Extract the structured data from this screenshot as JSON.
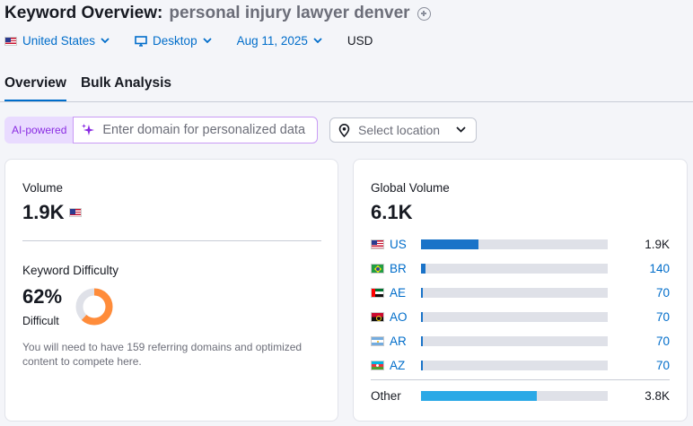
{
  "header": {
    "title": "Keyword Overview:",
    "keyword": "personal injury lawyer denver",
    "filters": {
      "country": "United States",
      "device": "Desktop",
      "date": "Aug 11, 2025",
      "currency": "USD"
    },
    "tabs": [
      {
        "label": "Overview",
        "active": true
      },
      {
        "label": "Bulk Analysis",
        "active": false
      }
    ]
  },
  "ai_bar": {
    "badge": "AI-powered",
    "placeholder": "Enter domain for personalized data"
  },
  "location_select": {
    "placeholder": "Select location"
  },
  "volume_card": {
    "volume_label": "Volume",
    "volume_value": "1.9K",
    "kd_label": "Keyword Difficulty",
    "kd_value": "62%",
    "kd_percent": 62,
    "kd_level": "Difficult",
    "kd_color": "#ff8c3a",
    "kd_description": "You will need to have 159 referring domains and optimized content to compete here."
  },
  "global_card": {
    "label": "Global Volume",
    "value": "6.1K",
    "countries": [
      {
        "code": "US",
        "value": "1.9K",
        "share": 0.31,
        "flag": "us-flag-icon"
      },
      {
        "code": "BR",
        "value": "140",
        "share": 0.023,
        "flag": "br-flag-icon"
      },
      {
        "code": "AE",
        "value": "70",
        "share": 0.012,
        "flag": "ae-flag-icon"
      },
      {
        "code": "AO",
        "value": "70",
        "share": 0.012,
        "flag": "ao-flag-icon"
      },
      {
        "code": "AR",
        "value": "70",
        "share": 0.012,
        "flag": "ar-flag-icon"
      },
      {
        "code": "AZ",
        "value": "70",
        "share": 0.012,
        "flag": "az-flag-icon"
      }
    ],
    "other": {
      "label": "Other",
      "value": "3.8K",
      "share": 0.62
    }
  },
  "colors": {
    "accent": "#006dca",
    "bar_main": "#1a73c8",
    "bar_other": "#2ba9e6",
    "bar_track": "#dfe1e8",
    "ai_purple": "#8a2be2"
  }
}
